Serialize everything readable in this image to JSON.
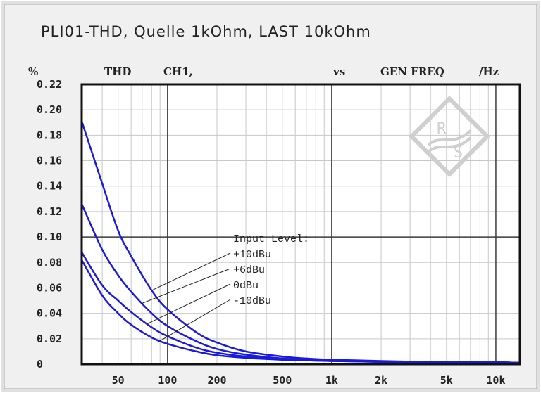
{
  "title": "PLI01-THD, Quelle 1kOhm, LAST 10kOhm",
  "header": {
    "unit_y": "%",
    "measure": "THD",
    "channel": "CH1,",
    "vs": "vs",
    "x_quantity": "GEN FREQ",
    "unit_x": "/Hz"
  },
  "logo_text": "RS",
  "colors": {
    "curve": "#1a1adf",
    "grid": "#c8c8c8",
    "major_grid": "#3a3a3a",
    "background": "#ffffff",
    "frame": "#d9d9d9"
  },
  "chart_data": {
    "type": "line",
    "title": "PLI01-THD, Quelle 1kOhm, LAST 10kOhm",
    "xlabel": "GEN FREQ /Hz",
    "ylabel": "THD CH1, %",
    "x_scale": "log",
    "xlim": [
      30,
      14000
    ],
    "ylim": [
      0,
      0.22
    ],
    "grid": true,
    "y_ticks": [
      "0",
      "0.02",
      "0.04",
      "0.06",
      "0.08",
      "0.10",
      "0.12",
      "0.14",
      "0.16",
      "0.18",
      "0.20",
      "0.22"
    ],
    "y_tick_values": [
      0,
      0.02,
      0.04,
      0.06,
      0.08,
      0.1,
      0.12,
      0.14,
      0.16,
      0.18,
      0.2,
      0.22
    ],
    "x_ticks": [
      "50",
      "100",
      "200",
      "500",
      "1k",
      "2k",
      "5k",
      "10k"
    ],
    "x_tick_values": [
      50,
      100,
      200,
      500,
      1000,
      2000,
      5000,
      10000
    ],
    "x": [
      30,
      40,
      50,
      60,
      80,
      100,
      150,
      200,
      300,
      500,
      700,
      1000,
      2000,
      5000,
      10000,
      14000
    ],
    "annotation_title": "Input Level:",
    "series": [
      {
        "name": "+10dBu",
        "values": [
          0.191,
          0.142,
          0.105,
          0.085,
          0.058,
          0.043,
          0.025,
          0.017,
          0.01,
          0.006,
          0.0045,
          0.0035,
          0.0025,
          0.0015,
          0.0015,
          0.001
        ]
      },
      {
        "name": "+6dBu",
        "values": [
          0.126,
          0.09,
          0.07,
          0.057,
          0.04,
          0.03,
          0.018,
          0.012,
          0.0075,
          0.0045,
          0.0035,
          0.003,
          0.002,
          0.0015,
          0.0015,
          0.001
        ]
      },
      {
        "name": "0dBu",
        "values": [
          0.088,
          0.062,
          0.05,
          0.041,
          0.029,
          0.022,
          0.013,
          0.009,
          0.006,
          0.004,
          0.003,
          0.0025,
          0.0018,
          0.0015,
          0.0015,
          0.001
        ]
      },
      {
        "name": "-10dBu",
        "values": [
          0.082,
          0.054,
          0.04,
          0.031,
          0.021,
          0.016,
          0.01,
          0.007,
          0.005,
          0.0035,
          0.003,
          0.0025,
          0.0018,
          0.0015,
          0.0015,
          0.001
        ]
      }
    ],
    "label_anchors_hz": [
      80,
      70,
      75,
      90
    ]
  }
}
